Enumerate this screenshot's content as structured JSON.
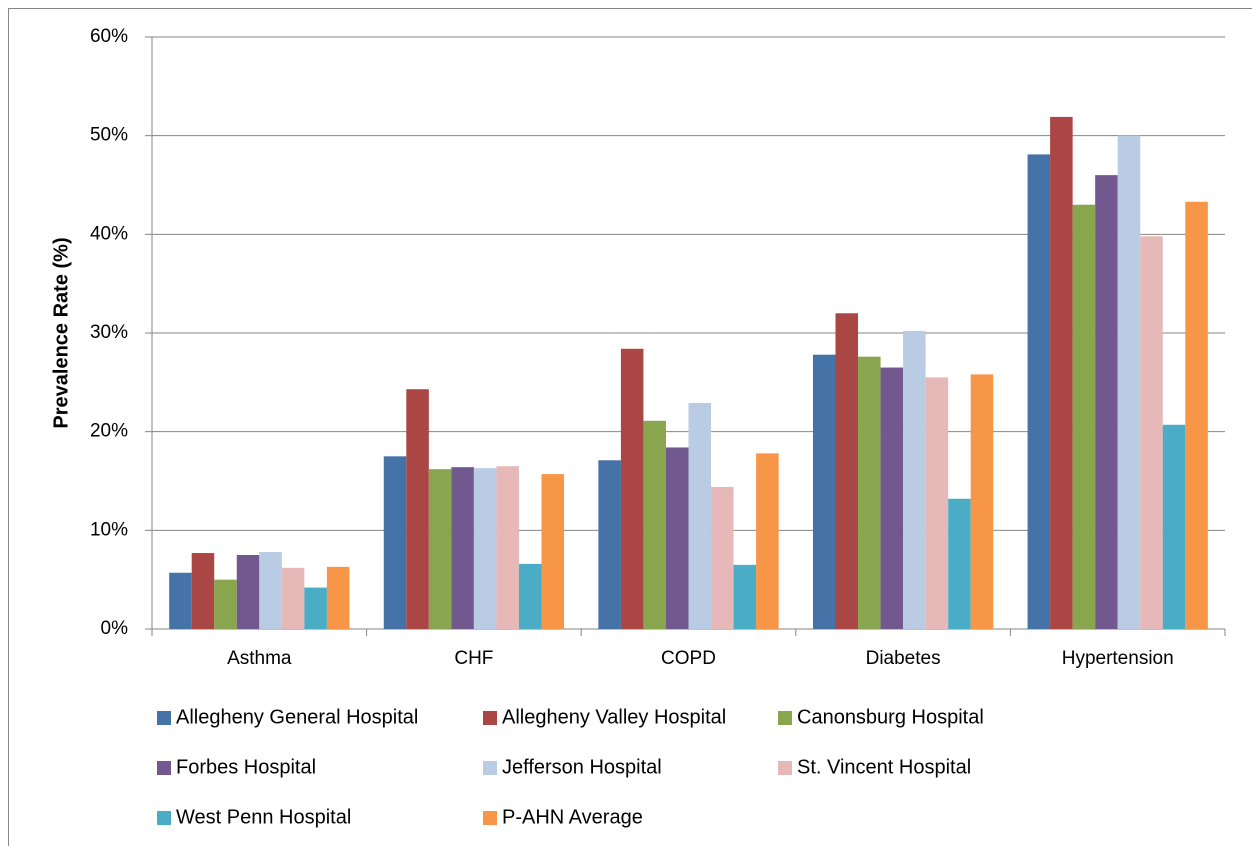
{
  "chart_data": {
    "type": "bar",
    "y_label": "Prevalence Rate (%)",
    "categories": [
      "Asthma",
      "CHF",
      "COPD",
      "Diabetes",
      "Hypertension"
    ],
    "series": [
      {
        "name": "Allegheny General Hospital",
        "color": "#4572a7",
        "values": [
          5.7,
          17.5,
          17.1,
          27.8,
          48.1
        ]
      },
      {
        "name": "Allegheny Valley Hospital",
        "color": "#aa4643",
        "values": [
          7.7,
          24.3,
          28.4,
          32.0,
          51.9
        ]
      },
      {
        "name": "Canonsburg Hospital",
        "color": "#89a54e",
        "values": [
          5.0,
          16.2,
          21.1,
          27.6,
          43.0
        ]
      },
      {
        "name": "Forbes Hospital",
        "color": "#71588f",
        "values": [
          7.5,
          16.4,
          18.4,
          26.5,
          46.0
        ]
      },
      {
        "name": "Jefferson Hospital",
        "color": "#b9cce4",
        "values": [
          7.8,
          16.3,
          22.9,
          30.2,
          50.0
        ]
      },
      {
        "name": "St. Vincent Hospital",
        "color": "#e6b9b8",
        "values": [
          6.2,
          16.5,
          14.4,
          25.5,
          39.8
        ]
      },
      {
        "name": "West Penn Hospital",
        "color": "#4bacc6",
        "values": [
          4.2,
          6.6,
          6.5,
          13.2,
          20.7
        ]
      },
      {
        "name": "P-AHN Average",
        "color": "#f79646",
        "values": [
          6.3,
          15.7,
          17.8,
          25.8,
          43.3
        ]
      }
    ],
    "ylim": [
      0,
      60
    ],
    "yticks": [
      {
        "value": 0,
        "label": "0%"
      },
      {
        "value": 10,
        "label": "10%"
      },
      {
        "value": 20,
        "label": "20%"
      },
      {
        "value": 30,
        "label": "30%"
      },
      {
        "value": 40,
        "label": "40%"
      },
      {
        "value": 50,
        "label": "50%"
      },
      {
        "value": 60,
        "label": "60%"
      }
    ],
    "grid": true,
    "legend": "bottom"
  }
}
